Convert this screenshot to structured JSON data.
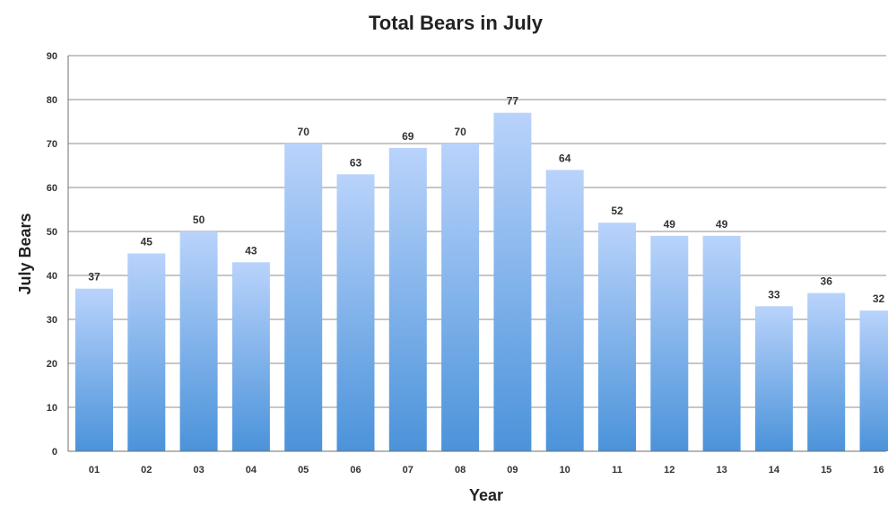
{
  "colors": {
    "bar_top": "#b9d3fb",
    "bar_bottom": "#4b93da",
    "grid": "#8c8c8c",
    "axis": "#6f6f6f",
    "text": "#222222"
  },
  "chart_data": {
    "type": "bar",
    "title": "Total Bears in July",
    "xlabel": "Year",
    "ylabel": "July Bears",
    "categories": [
      "01",
      "02",
      "03",
      "04",
      "05",
      "06",
      "07",
      "08",
      "09",
      "10",
      "11",
      "12",
      "13",
      "14",
      "15",
      "16"
    ],
    "values": [
      37,
      45,
      50,
      43,
      70,
      63,
      69,
      70,
      77,
      64,
      52,
      49,
      49,
      33,
      36,
      32
    ],
    "data_labels": [
      "37",
      "45",
      "50",
      "43",
      "70",
      "63",
      "69",
      "70",
      "77",
      "64",
      "52",
      "49",
      "49",
      "33",
      "36",
      "32"
    ],
    "ylim": [
      0,
      90
    ],
    "yticks": [
      "0",
      "10",
      "20",
      "30",
      "40",
      "50",
      "60",
      "70",
      "80",
      "90"
    ],
    "grid": true,
    "legend": "none"
  }
}
